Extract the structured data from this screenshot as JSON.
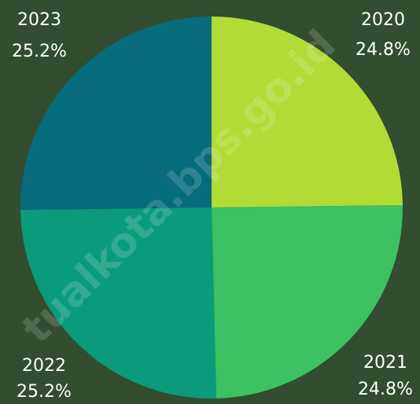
{
  "chart_data": {
    "type": "pie",
    "categories": [
      "2020",
      "2021",
      "2022",
      "2023"
    ],
    "values": [
      24.8,
      24.8,
      25.2,
      25.2
    ],
    "value_labels": [
      "24.8%",
      "24.8%",
      "25.2%",
      "25.2%"
    ],
    "colors": [
      "#b3db36",
      "#3cc262",
      "#0b9b7b",
      "#066c7b"
    ],
    "watermark": "tualkota.bps.go.id"
  }
}
